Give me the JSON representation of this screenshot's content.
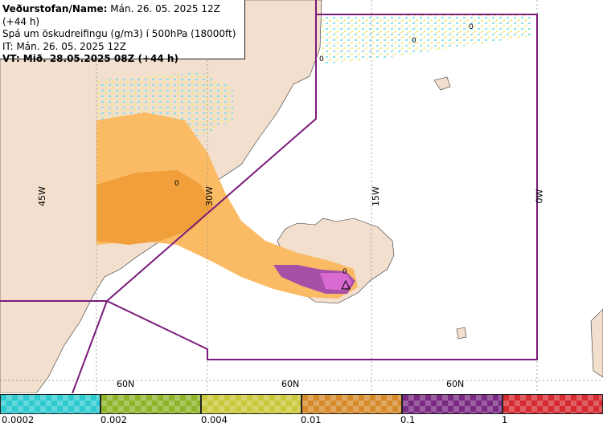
{
  "info": {
    "line1_bold": "Veðurstofan/Name:",
    "line1_rest": " Mán. 26. 05. 2025 12Z (+44 h)",
    "line2": "Spá um öskudreifingu (g/m3) í 500hPa (18000ft)",
    "line3": "IT: Mán. 26. 05. 2025 12Z",
    "line4": "VT: Mið. 28.05.2025 08Z (+44 h)"
  },
  "grid_labels": {
    "lon_45w": "45W",
    "lon_30w": "30W",
    "lon_15w": "15W",
    "lon_0w": "0W",
    "lat_a": "60N",
    "lat_b": "60N",
    "lat_c": "60N"
  },
  "markers": [
    "0",
    "0",
    "0",
    "0",
    "0"
  ],
  "legend": {
    "colors": [
      "#2ecad0",
      "#8fb42a",
      "#c9c83a",
      "#d68a2a",
      "#7a2a82",
      "#d42a30"
    ],
    "labels": [
      "0.0002",
      "0.002",
      "0.004",
      "0.01",
      "0.1",
      "1"
    ]
  }
}
